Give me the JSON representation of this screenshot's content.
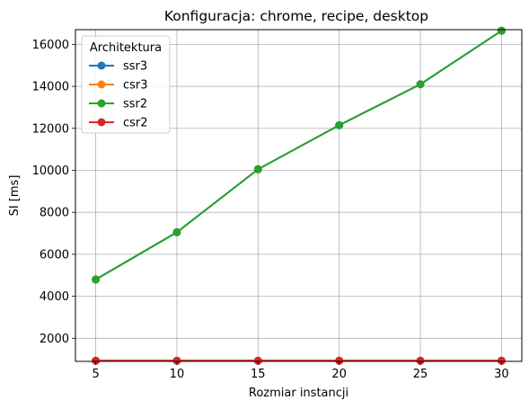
{
  "chart_data": {
    "type": "line",
    "title": "Konfiguracja: chrome, recipe, desktop",
    "xlabel": "Rozmiar instancji",
    "ylabel": "SI [ms]",
    "x": [
      5,
      10,
      15,
      20,
      25,
      30
    ],
    "xlim": [
      3.75,
      31.25
    ],
    "ylim": [
      900,
      16700
    ],
    "xticks": [
      5,
      10,
      15,
      20,
      25,
      30
    ],
    "yticks": [
      2000,
      4000,
      6000,
      8000,
      10000,
      12000,
      14000,
      16000
    ],
    "grid": true,
    "legend": {
      "title": "Architektura",
      "placement": "top-left"
    },
    "series": [
      {
        "name": "ssr3",
        "color": "#1f77b4",
        "values": [
          4800,
          7050,
          10050,
          12150,
          14100,
          16650
        ]
      },
      {
        "name": "csr3",
        "color": "#ff7f0e",
        "values": [
          930,
          930,
          930,
          930,
          930,
          930
        ]
      },
      {
        "name": "ssr2",
        "color": "#2ca02c",
        "values": [
          4800,
          7050,
          10050,
          12150,
          14100,
          16650
        ]
      },
      {
        "name": "csr2",
        "color": "#d62728",
        "values": [
          930,
          930,
          930,
          930,
          930,
          930
        ]
      }
    ]
  }
}
